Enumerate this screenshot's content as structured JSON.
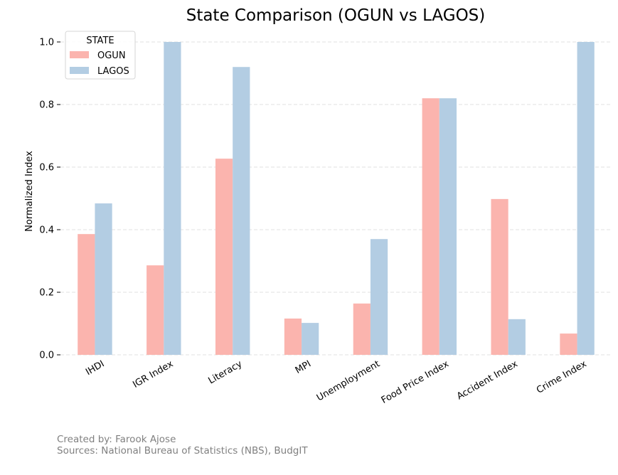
{
  "chart_data": {
    "type": "bar",
    "title": "State Comparison (OGUN vs LAGOS)",
    "xlabel": "",
    "ylabel": "Normalized Index",
    "categories": [
      "IHDI",
      "IGR Index",
      "Literacy",
      "MPI",
      "Unemployment",
      "Food Price Index",
      "Accident Index",
      "Crime Index"
    ],
    "series": [
      {
        "name": "OGUN",
        "color": "#fbb4ae",
        "values": [
          0.386,
          0.286,
          0.627,
          0.116,
          0.164,
          0.82,
          0.498,
          0.068
        ]
      },
      {
        "name": "LAGOS",
        "color": "#b3cde3",
        "values": [
          0.484,
          1.0,
          0.92,
          0.102,
          0.37,
          0.82,
          0.114,
          1.0
        ]
      }
    ],
    "ylim": [
      0,
      1.0
    ],
    "yticks": [
      0.0,
      0.2,
      0.4,
      0.6,
      0.8,
      1.0
    ],
    "ytick_labels": [
      "0.0",
      "0.2",
      "0.4",
      "0.6",
      "0.8",
      "1.0"
    ],
    "grid": "y-dashed",
    "legend": {
      "title": "STATE",
      "position": "top-left"
    },
    "xtick_rotation": 30
  },
  "footer": {
    "created_by": "Created by: Farook Ajose",
    "sources": "Sources: National Bureau of Statistics (NBS), BudgIT"
  }
}
